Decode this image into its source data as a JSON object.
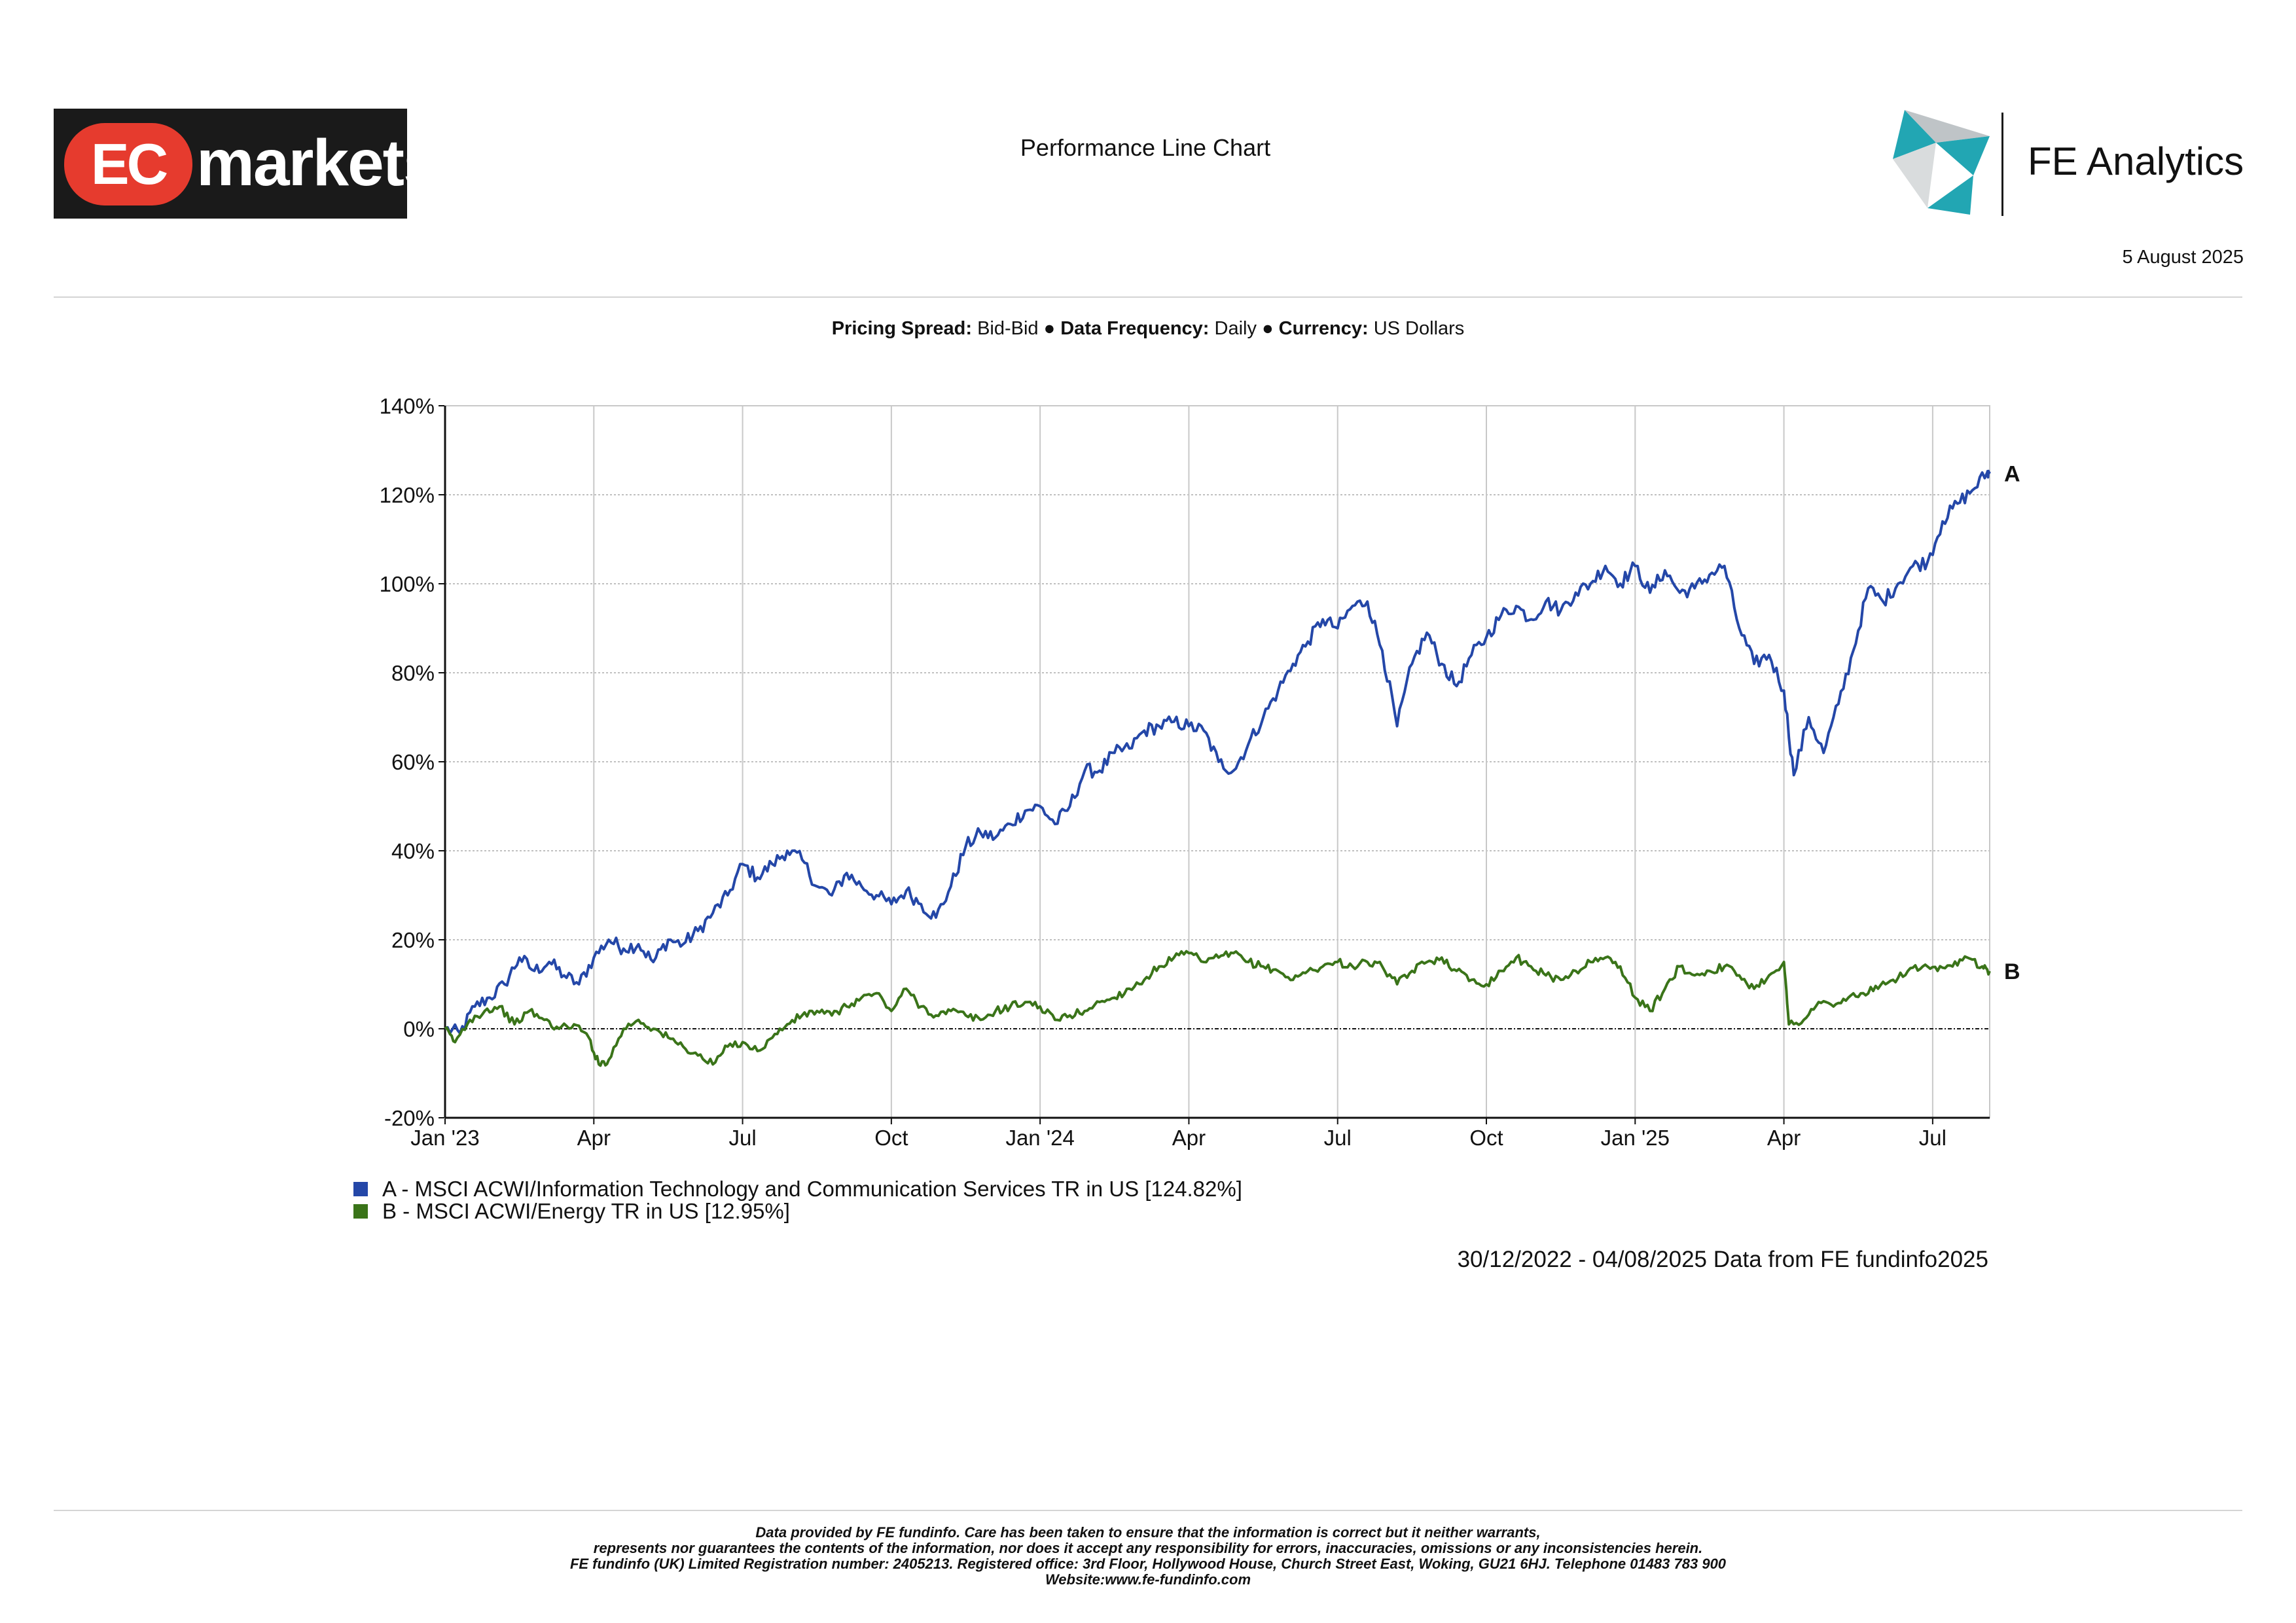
{
  "header": {
    "brand_left": {
      "badge": "EC",
      "word": "markets"
    },
    "page_title": "Performance Line Chart",
    "brand_right": "FE Analytics",
    "date": "5 August 2025"
  },
  "params": {
    "pricing_label": "Pricing Spread:",
    "pricing_value": "Bid-Bid",
    "separator": "●",
    "frequency_label": "Data Frequency:",
    "frequency_value": "Daily",
    "currency_label": "Currency:",
    "currency_value": "US Dollars"
  },
  "colors": {
    "series_a": "#2447a8",
    "series_b": "#3a7419",
    "grid": "#c8c8c8",
    "zero": "#111111"
  },
  "chart_data": {
    "type": "line",
    "title": "Performance Line Chart",
    "xlabel": "",
    "ylabel": "",
    "ylim": [
      -20,
      140
    ],
    "yticks": [
      -20,
      0,
      20,
      40,
      60,
      80,
      100,
      120,
      140
    ],
    "ytick_labels": [
      "-20%",
      "0%",
      "20%",
      "40%",
      "60%",
      "80%",
      "100%",
      "120%",
      "140%"
    ],
    "xlim": [
      0,
      31.15
    ],
    "xticks": [
      0,
      3,
      6,
      9,
      12,
      15,
      18,
      21,
      24,
      27,
      30
    ],
    "xtick_labels": [
      "Jan '23",
      "Apr",
      "Jul",
      "Oct",
      "Jan '24",
      "Apr",
      "Jul",
      "Oct",
      "Jan '25",
      "Apr",
      "Jul"
    ],
    "x_units": "months since 30/12/2022",
    "series": [
      {
        "name": "A - MSCI ACWI/Information Technology and Communication Services TR in US [124.82%]",
        "end_label": "A",
        "color": "#2447a8",
        "points": [
          [
            0,
            0
          ],
          [
            0.3,
            -1
          ],
          [
            0.6,
            5
          ],
          [
            0.9,
            7
          ],
          [
            1.2,
            10
          ],
          [
            1.5,
            16
          ],
          [
            1.8,
            13
          ],
          [
            2.1,
            15
          ],
          [
            2.4,
            12
          ],
          [
            2.7,
            10
          ],
          [
            3.0,
            16
          ],
          [
            3.3,
            20
          ],
          [
            3.6,
            18
          ],
          [
            3.9,
            19
          ],
          [
            4.2,
            15
          ],
          [
            4.5,
            20
          ],
          [
            4.8,
            19
          ],
          [
            5.1,
            22
          ],
          [
            5.4,
            26
          ],
          [
            5.7,
            30
          ],
          [
            6.0,
            37
          ],
          [
            6.3,
            34
          ],
          [
            6.6,
            37
          ],
          [
            6.9,
            40
          ],
          [
            7.2,
            38
          ],
          [
            7.5,
            32
          ],
          [
            7.8,
            30
          ],
          [
            8.1,
            35
          ],
          [
            8.4,
            32
          ],
          [
            8.7,
            30
          ],
          [
            9.0,
            28
          ],
          [
            9.3,
            31
          ],
          [
            9.6,
            28
          ],
          [
            9.9,
            25
          ],
          [
            10.2,
            32
          ],
          [
            10.5,
            41
          ],
          [
            10.8,
            44
          ],
          [
            11.1,
            43
          ],
          [
            11.4,
            46
          ],
          [
            11.7,
            49
          ],
          [
            12.0,
            50
          ],
          [
            12.3,
            46
          ],
          [
            12.6,
            50
          ],
          [
            12.9,
            58
          ],
          [
            13.2,
            58
          ],
          [
            13.5,
            62
          ],
          [
            13.8,
            63
          ],
          [
            14.1,
            67
          ],
          [
            14.4,
            68
          ],
          [
            14.7,
            69
          ],
          [
            15.0,
            68
          ],
          [
            15.3,
            67
          ],
          [
            15.6,
            60
          ],
          [
            15.9,
            58
          ],
          [
            16.2,
            64
          ],
          [
            16.5,
            70
          ],
          [
            16.8,
            76
          ],
          [
            17.1,
            82
          ],
          [
            17.4,
            87
          ],
          [
            17.7,
            92
          ],
          [
            18.0,
            90
          ],
          [
            18.3,
            95
          ],
          [
            18.6,
            96
          ],
          [
            18.9,
            85
          ],
          [
            19.2,
            68
          ],
          [
            19.5,
            82
          ],
          [
            19.8,
            89
          ],
          [
            20.1,
            82
          ],
          [
            20.4,
            77
          ],
          [
            20.7,
            84
          ],
          [
            21.0,
            88
          ],
          [
            21.3,
            93
          ],
          [
            21.6,
            95
          ],
          [
            21.9,
            92
          ],
          [
            22.2,
            96
          ],
          [
            22.5,
            94
          ],
          [
            22.8,
            98
          ],
          [
            23.1,
            100
          ],
          [
            23.4,
            104
          ],
          [
            23.7,
            100
          ],
          [
            24.0,
            104
          ],
          [
            24.3,
            98
          ],
          [
            24.6,
            103
          ],
          [
            24.9,
            98
          ],
          [
            25.2,
            99
          ],
          [
            25.5,
            102
          ],
          [
            25.8,
            104
          ],
          [
            26.1,
            90
          ],
          [
            26.4,
            82
          ],
          [
            26.7,
            84
          ],
          [
            27.0,
            76
          ],
          [
            27.2,
            57
          ],
          [
            27.5,
            70
          ],
          [
            27.8,
            62
          ],
          [
            28.1,
            73
          ],
          [
            28.4,
            85
          ],
          [
            28.7,
            99
          ],
          [
            29.0,
            96
          ],
          [
            29.3,
            100
          ],
          [
            29.6,
            104
          ],
          [
            29.9,
            105
          ],
          [
            30.2,
            114
          ],
          [
            30.5,
            118
          ],
          [
            30.8,
            121
          ],
          [
            31.1,
            125
          ],
          [
            31.15,
            124.8
          ]
        ]
      },
      {
        "name": "B - MSCI ACWI/Energy TR in US [12.95%]",
        "end_label": "B",
        "color": "#3a7419",
        "points": [
          [
            0,
            0
          ],
          [
            0.2,
            -3
          ],
          [
            0.5,
            2
          ],
          [
            0.8,
            4
          ],
          [
            1.1,
            5
          ],
          [
            1.4,
            1
          ],
          [
            1.7,
            4
          ],
          [
            2.0,
            2
          ],
          [
            2.3,
            0
          ],
          [
            2.6,
            1
          ],
          [
            2.9,
            -2
          ],
          [
            3.1,
            -8
          ],
          [
            3.3,
            -7
          ],
          [
            3.6,
            0
          ],
          [
            3.9,
            2
          ],
          [
            4.2,
            0
          ],
          [
            4.5,
            -2
          ],
          [
            4.8,
            -4
          ],
          [
            5.1,
            -6
          ],
          [
            5.4,
            -8
          ],
          [
            5.7,
            -4
          ],
          [
            6.0,
            -3
          ],
          [
            6.3,
            -5
          ],
          [
            6.6,
            -2
          ],
          [
            6.9,
            1
          ],
          [
            7.2,
            3
          ],
          [
            7.5,
            4
          ],
          [
            7.8,
            3
          ],
          [
            8.1,
            5
          ],
          [
            8.4,
            7
          ],
          [
            8.7,
            8
          ],
          [
            9.0,
            4
          ],
          [
            9.3,
            9
          ],
          [
            9.6,
            5
          ],
          [
            9.9,
            3
          ],
          [
            10.2,
            4
          ],
          [
            10.5,
            3
          ],
          [
            10.8,
            2
          ],
          [
            11.1,
            4
          ],
          [
            11.4,
            5
          ],
          [
            11.7,
            6
          ],
          [
            12.0,
            5
          ],
          [
            12.3,
            2
          ],
          [
            12.6,
            3
          ],
          [
            12.9,
            4
          ],
          [
            13.2,
            6
          ],
          [
            13.5,
            7
          ],
          [
            13.8,
            9
          ],
          [
            14.1,
            11
          ],
          [
            14.4,
            14
          ],
          [
            14.7,
            16
          ],
          [
            15.0,
            17
          ],
          [
            15.3,
            15
          ],
          [
            15.6,
            16
          ],
          [
            15.9,
            17
          ],
          [
            16.2,
            15
          ],
          [
            16.5,
            14
          ],
          [
            16.8,
            13
          ],
          [
            17.1,
            11
          ],
          [
            17.4,
            13
          ],
          [
            17.7,
            14
          ],
          [
            18.0,
            15
          ],
          [
            18.3,
            14
          ],
          [
            18.6,
            15
          ],
          [
            18.9,
            14
          ],
          [
            19.2,
            10
          ],
          [
            19.5,
            13
          ],
          [
            19.8,
            15
          ],
          [
            20.1,
            16
          ],
          [
            20.4,
            13
          ],
          [
            20.7,
            11
          ],
          [
            21.0,
            10
          ],
          [
            21.3,
            13
          ],
          [
            21.6,
            16
          ],
          [
            21.9,
            14
          ],
          [
            22.2,
            12
          ],
          [
            22.5,
            11
          ],
          [
            22.8,
            13
          ],
          [
            23.1,
            15
          ],
          [
            23.4,
            16
          ],
          [
            23.7,
            14
          ],
          [
            24.0,
            7
          ],
          [
            24.3,
            4
          ],
          [
            24.6,
            9
          ],
          [
            24.9,
            14
          ],
          [
            25.2,
            12
          ],
          [
            25.5,
            13
          ],
          [
            25.8,
            14
          ],
          [
            26.1,
            12
          ],
          [
            26.4,
            9
          ],
          [
            26.7,
            12
          ],
          [
            27.0,
            15
          ],
          [
            27.1,
            1
          ],
          [
            27.4,
            2
          ],
          [
            27.7,
            6
          ],
          [
            28.0,
            5
          ],
          [
            28.3,
            7
          ],
          [
            28.6,
            8
          ],
          [
            28.9,
            9
          ],
          [
            29.2,
            11
          ],
          [
            29.5,
            13
          ],
          [
            29.8,
            14
          ],
          [
            30.1,
            13
          ],
          [
            30.4,
            14
          ],
          [
            30.7,
            16
          ],
          [
            31.0,
            14
          ],
          [
            31.15,
            12.95
          ]
        ]
      }
    ],
    "baseline": 0,
    "legend_position": "bottom-left",
    "source": "30/12/2022 - 04/08/2025 Data from FE fundinfo2025"
  },
  "legend": {
    "a_label": "A - MSCI ACWI/Information Technology and Communication Services TR in US [124.82%]",
    "b_label": "B - MSCI ACWI/Energy TR in US [12.95%]"
  },
  "source_line": "30/12/2022 - 04/08/2025 Data from FE fundinfo2025",
  "disclaimer": {
    "line1": "Data provided by FE fundinfo. Care has been taken to ensure that the information is correct but it neither warrants,",
    "line2": "represents nor guarantees the contents of the information, nor does it accept any responsibility for errors, inaccuracies, omissions or any inconsistencies herein.",
    "line3": "FE fundinfo (UK) Limited Registration number: 2405213. Registered office: 3rd Floor, Hollywood House, Church Street East, Woking, GU21 6HJ. Telephone 01483 783 900",
    "line4": "Website:www.fe-fundinfo.com"
  }
}
